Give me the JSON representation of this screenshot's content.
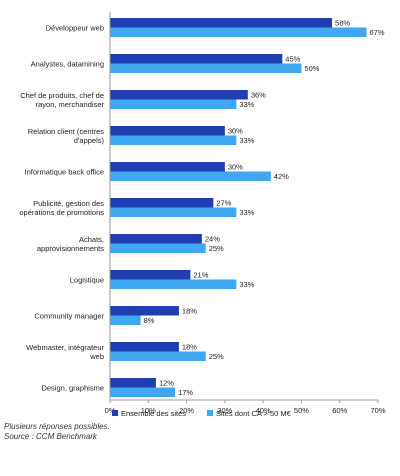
{
  "chart_data": {
    "type": "bar",
    "orientation": "horizontal",
    "categories": [
      [
        "Développeur web"
      ],
      [
        "Analystes, datamining"
      ],
      [
        "Chef de produits, chef de",
        "rayon, merchandiser"
      ],
      [
        "Relation client (centres",
        "d'appels)"
      ],
      [
        "Informatique back office"
      ],
      [
        "Publicité, gestion des",
        "opérations de promotions"
      ],
      [
        "Achats,",
        "approvisionnements"
      ],
      [
        "Logistique"
      ],
      [
        "Community manager"
      ],
      [
        "Webmaster, intégrateur",
        "web"
      ],
      [
        "Design, graphisme"
      ]
    ],
    "series": [
      {
        "name": "Ensemble des sites",
        "color": "#1f3fb0",
        "values": [
          58,
          45,
          36,
          30,
          30,
          27,
          24,
          21,
          18,
          18,
          12
        ]
      },
      {
        "name": "Sites dont CA > 50 M€",
        "color": "#3fa6f0",
        "values": [
          67,
          50,
          33,
          33,
          42,
          33,
          25,
          33,
          8,
          25,
          17
        ]
      }
    ],
    "value_suffix": "%",
    "xlim": [
      0,
      70
    ],
    "xticks": [
      0,
      10,
      20,
      30,
      40,
      50,
      60,
      70
    ],
    "grid": false,
    "legend_position": "bottom"
  },
  "footnotes": {
    "line1": "Plusieurs réponses possibles.",
    "line2": "Source : CCM Benchmark"
  }
}
